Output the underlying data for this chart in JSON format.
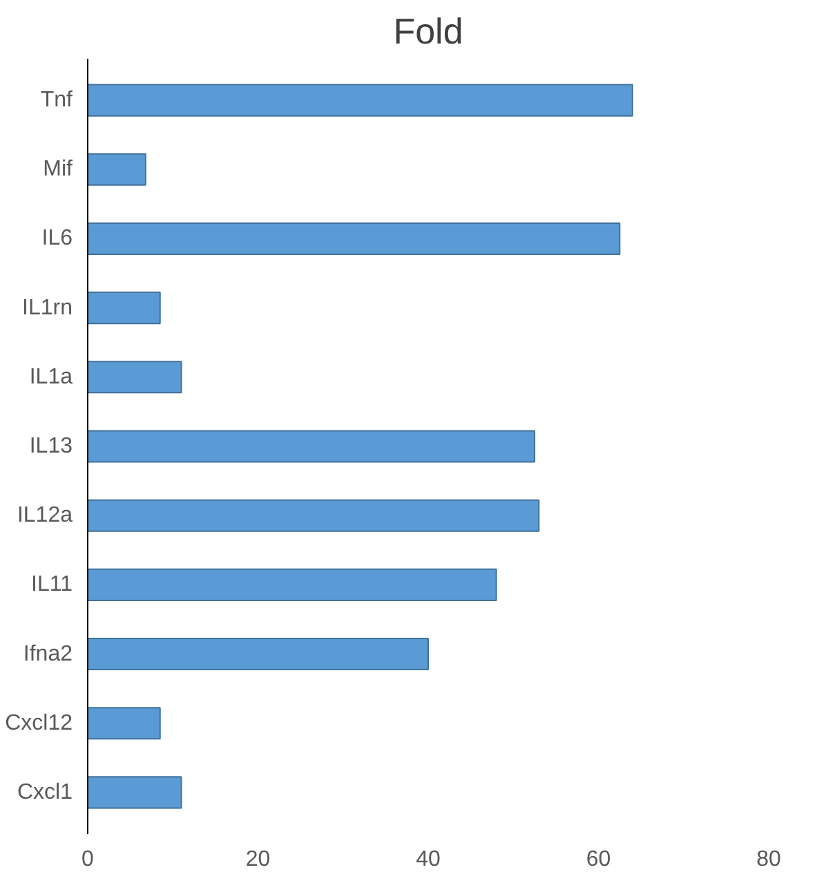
{
  "chart_data": {
    "type": "bar",
    "orientation": "horizontal",
    "title": "Fold",
    "categories": [
      "Tnf",
      "Mif",
      "IL6",
      "IL1rn",
      "IL1a",
      "IL13",
      "IL12a",
      "IL11",
      "Ifna2",
      "Cxcl12",
      "Cxcl1"
    ],
    "values": [
      64,
      6.8,
      62.5,
      8.5,
      11,
      52.5,
      53,
      48,
      40,
      8.5,
      11
    ],
    "color": "#5b9bd5",
    "xlim": [
      0,
      80
    ],
    "xticks": [
      0,
      20,
      40,
      60,
      80
    ],
    "grid": false
  }
}
